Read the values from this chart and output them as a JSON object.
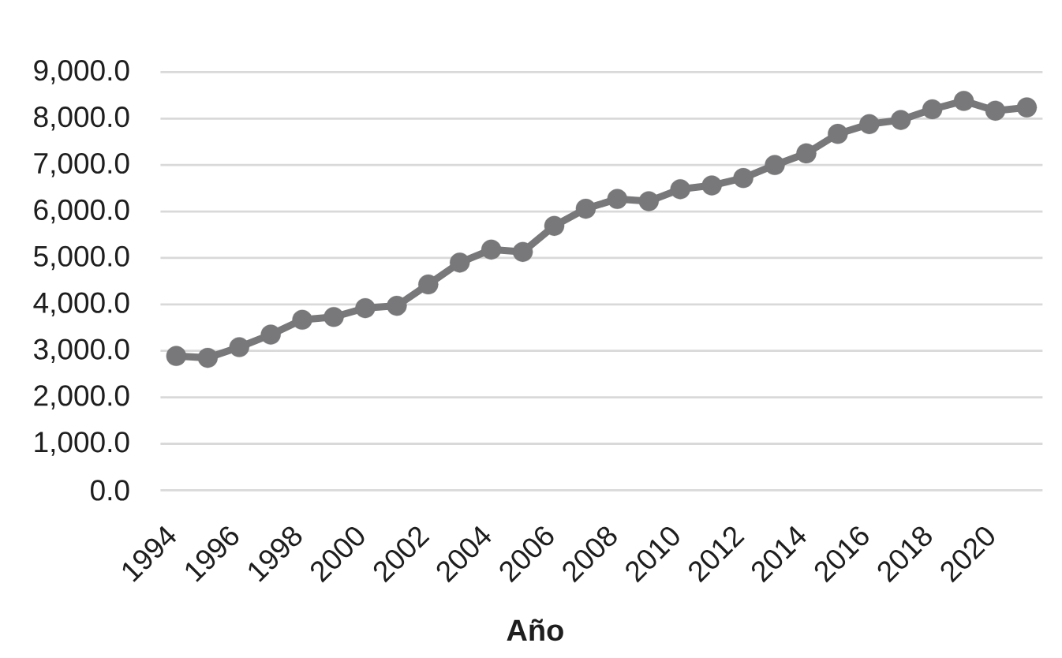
{
  "chart_data": {
    "type": "line",
    "xlabel": "Año",
    "categories": [
      "1994",
      null,
      "1996",
      null,
      "1998",
      null,
      "2000",
      null,
      "2002",
      null,
      "2004",
      null,
      "2006",
      null,
      "2008",
      null,
      "2010",
      null,
      "2012",
      null,
      "2014",
      null,
      "2016",
      null,
      "2018",
      null,
      "2020",
      null
    ],
    "series": [
      {
        "color": "#78787a",
        "values": [
          2890,
          2850,
          3080,
          3350,
          3670,
          3730,
          3920,
          3970,
          4430,
          4900,
          5180,
          5130,
          5690,
          6060,
          6270,
          6220,
          6480,
          6560,
          6720,
          7000,
          7250,
          7670,
          7880,
          7970,
          8200,
          8380,
          8170,
          8240
        ]
      }
    ],
    "ylim": [
      0,
      9000
    ],
    "yticks": [
      {
        "value": 0,
        "label": "0.0"
      },
      {
        "value": 1000,
        "label": "1,000.0"
      },
      {
        "value": 2000,
        "label": "2,000.0"
      },
      {
        "value": 3000,
        "label": "3,000.0"
      },
      {
        "value": 4000,
        "label": "4,000.0"
      },
      {
        "value": 5000,
        "label": "5,000.0"
      },
      {
        "value": 6000,
        "label": "6,000.0"
      },
      {
        "value": 7000,
        "label": "7,000.0"
      },
      {
        "value": 8000,
        "label": "8,000.0"
      },
      {
        "value": 9000,
        "label": "9,000.0"
      }
    ],
    "grid": "y",
    "marker": "circle",
    "line_style": "solid"
  }
}
